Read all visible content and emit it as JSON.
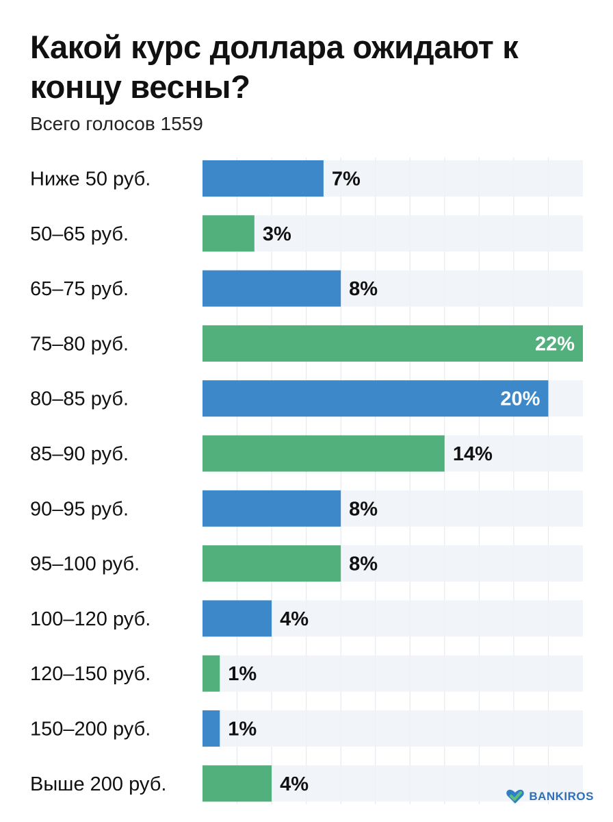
{
  "title": "Какой курс доллара ожидают к концу весны?",
  "subtitle": "Всего голосов 1559",
  "brand": {
    "name": "BANKIROS",
    "icon": "heart-check-icon",
    "colors": [
      "#2f7fc8",
      "#5cbf7a"
    ]
  },
  "colors": {
    "blue": "#3d88c8",
    "green": "#52b07d",
    "track": "#eef3f8",
    "grid": "#e1e6ec"
  },
  "chart_data": {
    "type": "bar",
    "orientation": "horizontal",
    "title": "Какой курс доллара ожидают к концу весны?",
    "subtitle": "Всего голосов 1559",
    "unit": "%",
    "xlim": [
      0,
      22
    ],
    "grid": true,
    "categories": [
      "Ниже 50 руб.",
      "50–65 руб.",
      "65–75 руб.",
      "75–80 руб.",
      "80–85 руб.",
      "85–90 руб.",
      "90–95 руб.",
      "95–100 руб.",
      "100–120 руб.",
      "120–150 руб.",
      "150–200 руб.",
      "Выше 200 руб."
    ],
    "values": [
      7,
      3,
      8,
      22,
      20,
      14,
      8,
      8,
      4,
      1,
      1,
      4
    ],
    "labels": [
      "7%",
      "3%",
      "8%",
      "22%",
      "20%",
      "14%",
      "8%",
      "8%",
      "4%",
      "1%",
      "1%",
      "4%"
    ],
    "bar_colors": [
      "blue",
      "green",
      "blue",
      "green",
      "blue",
      "green",
      "blue",
      "green",
      "blue",
      "green",
      "blue",
      "green"
    ]
  }
}
